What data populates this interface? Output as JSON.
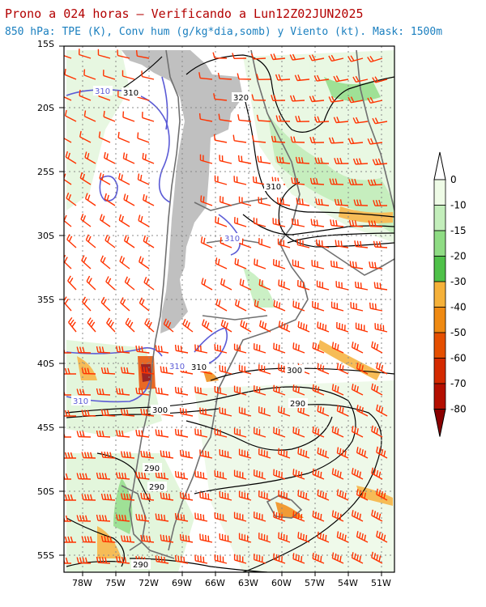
{
  "title": "Prono a 024 horas – Verificando a Lun12Z02JUN2025",
  "subtitle": "850 hPa: TPE (K), Conv hum (g/kg*dia,somb) y Viento (kt). Mask: 1500m",
  "lat_ticks": [
    "15S",
    "20S",
    "25S",
    "30S",
    "35S",
    "40S",
    "45S",
    "50S",
    "55S"
  ],
  "lon_ticks": [
    "78W",
    "75W",
    "72W",
    "69W",
    "66W",
    "63W",
    "60W",
    "57W",
    "54W",
    "51W"
  ],
  "contour_labels": {
    "black": [
      "310",
      "320",
      "310",
      "300",
      "290",
      "310",
      "300",
      "290",
      "290",
      "290"
    ],
    "purple": [
      "310",
      "310",
      "310",
      "310"
    ]
  },
  "colorbar": {
    "labels": [
      "0",
      "-10",
      "-15",
      "-20",
      "-30",
      "-40",
      "-50",
      "-60",
      "-70",
      "-80"
    ],
    "colors": [
      "#eefbe6",
      "#c3eebb",
      "#8fdc84",
      "#4fc149",
      "#f5b13a",
      "#ef8a12",
      "#e54f00",
      "#d42a00",
      "#b40f00",
      "#8a0000"
    ]
  },
  "colors": {
    "terrain_mask": "#c0c0c0",
    "contour": "#000000",
    "contour_310": "#5b5bd6",
    "wind_barb": "#ff3300",
    "grid": "#888888",
    "coast": "#707070"
  }
}
